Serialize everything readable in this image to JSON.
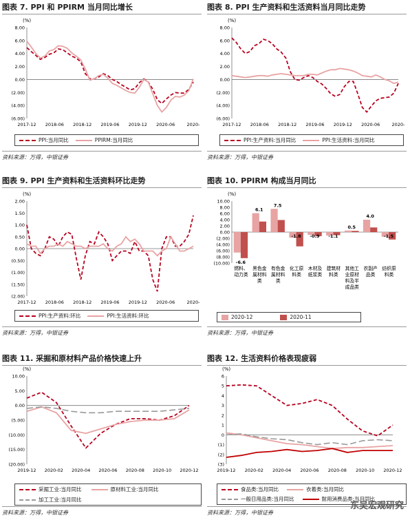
{
  "colors": {
    "dark": "#b8001f",
    "light": "#e8a3a3",
    "gray": "#999999",
    "deep": "#c00000"
  },
  "watermark": "东吴宏观研究",
  "charts": [
    {
      "title": "图表 7. PPI 和 PPIRM 当月同比增长",
      "source": "资料来源：万得，中银证券",
      "unit": "(%)",
      "legend": [
        "PPI:当月同比",
        "PPIRM:当月同比"
      ]
    },
    {
      "title": "图表 8. PPI 生产资料和生活资料当月同比走势",
      "source": "资料来源：万得，中银证券",
      "unit": "(%)",
      "legend": [
        "PPI:生产资料:当月同比",
        "PPI:生活资料:当月同比"
      ]
    },
    {
      "title": "图表 9. PPI 生产资料和生活资料环比走势",
      "source": "资料来源：万得，中银证券",
      "unit": "(%)",
      "legend": [
        "PPI:生产资料:环比",
        "PPI:生活资料:环比"
      ]
    },
    {
      "title": "图表 10. PPIRM 构成当月同比",
      "source": "资料来源：万得，中银证券",
      "unit": "(%)",
      "legend": [
        "2020-12",
        "2020-11"
      ]
    },
    {
      "title": "图表 11. 采掘和原材料产品价格快速上升",
      "source": "资料来源：万得，中银证券",
      "unit": "(%)",
      "legend": [
        "采掘工业:当月同比",
        "原材料工业:当月同比",
        "加工工业:当月同比"
      ]
    },
    {
      "title": "图表 12. 生活资料价格表现疲弱",
      "source": "资料来源：万得，中银证券",
      "unit": "(%)",
      "legend": [
        "食品类:当月同比",
        "衣着类:当月同比",
        "一般日用品类:当月同比",
        "耐用消费品类:当月同比"
      ]
    }
  ],
  "chart_data": [
    {
      "type": "line",
      "x_ticks": [
        "2017-12",
        "2018-06",
        "2018-12",
        "2019-06",
        "2019-12",
        "2020-06",
        "2020-"
      ],
      "ylim": [
        -6,
        8
      ],
      "y_ticks": [
        "8.00",
        "6.00",
        "4.00",
        "2.00",
        "0.00",
        "(2.00)",
        "(4.00)",
        "(6.00)"
      ],
      "series": [
        {
          "name": "PPI:当月同比",
          "style": "dashed-dark",
          "values": [
            4.9,
            4.3,
            3.7,
            3.1,
            3.4,
            3.9,
            4.1,
            4.7,
            4.6,
            4.1,
            3.6,
            3.3,
            2.7,
            0.9,
            0.1,
            0.1,
            0.4,
            0.9,
            0.6,
            0.0,
            -0.3,
            -0.8,
            -1.2,
            -1.6,
            -1.4,
            -0.5,
            0.1,
            -0.4,
            -1.5,
            -3.1,
            -3.7,
            -3.0,
            -2.4,
            -2.0,
            -2.1,
            -2.1,
            -1.5,
            -0.4
          ]
        },
        {
          "name": "PPIRM:当月同比",
          "style": "solid-light",
          "values": [
            5.9,
            5.0,
            4.0,
            3.3,
            3.6,
            4.4,
            4.6,
            5.2,
            5.1,
            4.8,
            4.1,
            3.6,
            3.0,
            1.6,
            -0.1,
            0.1,
            0.6,
            0.8,
            0.2,
            -0.6,
            -0.9,
            -1.3,
            -1.7,
            -2.0,
            -2.1,
            -1.2,
            0.0,
            -0.4,
            -2.2,
            -4.0,
            -5.0,
            -4.3,
            -3.2,
            -2.6,
            -2.7,
            -2.4,
            -1.7,
            0.1
          ]
        }
      ]
    },
    {
      "type": "line",
      "x_ticks": [
        "2017-12",
        "2018-06",
        "2018-12",
        "2019-06",
        "2019-12",
        "2020-06",
        "2020-"
      ],
      "ylim": [
        -6,
        8
      ],
      "y_ticks": [
        "8.00",
        "6.00",
        "4.00",
        "2.00",
        "0.00",
        "(2.00)",
        "(4.00)",
        "(6.00)"
      ],
      "series": [
        {
          "name": "PPI:生产资料:当月同比",
          "style": "dashed-dark",
          "values": [
            6.4,
            5.7,
            4.7,
            4.0,
            4.3,
            5.2,
            5.5,
            6.2,
            6.0,
            5.5,
            4.7,
            4.2,
            3.3,
            1.2,
            0.0,
            -0.1,
            0.3,
            0.6,
            0.3,
            -0.3,
            -0.7,
            -1.4,
            -2.2,
            -2.6,
            -2.3,
            -1.1,
            -0.3,
            -0.3,
            -2.2,
            -4.3,
            -5.0,
            -4.1,
            -3.3,
            -2.9,
            -2.8,
            -2.7,
            -2.1,
            -0.6
          ]
        },
        {
          "name": "PPI:生活资料:当月同比",
          "style": "solid-light",
          "values": [
            0.6,
            0.5,
            0.4,
            0.3,
            0.4,
            0.5,
            0.6,
            0.6,
            0.5,
            0.7,
            0.8,
            0.9,
            0.8,
            0.7,
            0.6,
            0.6,
            0.6,
            0.8,
            0.8,
            0.7,
            1.0,
            1.3,
            1.5,
            1.5,
            1.7,
            1.6,
            1.5,
            1.3,
            1.0,
            0.6,
            0.5,
            0.4,
            0.7,
            0.4,
            0.0,
            -0.2,
            -0.6,
            -0.4
          ]
        }
      ]
    },
    {
      "type": "line",
      "x_ticks": [
        "2017-12",
        "2018-06",
        "2018-12",
        "2019-06",
        "2019-12",
        "2020-06",
        "2020-"
      ],
      "ylim": [
        -2,
        2
      ],
      "y_ticks": [
        "2.00",
        "1.50",
        "1.00",
        "0.50",
        "0.00",
        "(0.50)",
        "(1.00)",
        "(1.50)",
        "(2.00)"
      ],
      "series": [
        {
          "name": "PPI:生产资料:环比",
          "style": "dashed-dark",
          "values": [
            1.0,
            0.0,
            -0.2,
            -0.3,
            0.0,
            0.5,
            0.4,
            0.1,
            0.5,
            0.7,
            0.6,
            -0.4,
            -1.3,
            -0.3,
            0.3,
            0.2,
            0.7,
            0.5,
            0.2,
            -0.5,
            -0.3,
            -0.1,
            -0.1,
            -0.2,
            0.3,
            -0.1,
            -0.1,
            -0.3,
            -1.3,
            -1.8,
            0.0,
            0.5,
            0.5,
            0.1,
            0.1,
            0.3,
            0.6,
            1.4
          ]
        },
        {
          "name": "PPI:生活资料:环比",
          "style": "solid-light",
          "values": [
            0.2,
            0.1,
            0.1,
            -0.2,
            0.0,
            0.1,
            0.1,
            0.2,
            0.1,
            0.3,
            0.2,
            0.1,
            0.1,
            0.0,
            0.1,
            0.1,
            0.1,
            0.2,
            0.0,
            -0.1,
            0.1,
            0.2,
            0.5,
            0.3,
            0.4,
            0.2,
            -0.1,
            -0.1,
            -0.1,
            -0.3,
            -0.1,
            0.0,
            0.5,
            0.2,
            -0.1,
            -0.1,
            0.0,
            0.1
          ]
        }
      ]
    },
    {
      "type": "bar",
      "ylim": [
        -10,
        10
      ],
      "y_ticks": [
        "10.00",
        "8.00",
        "6.00",
        "4.00",
        "2.00",
        "0.00",
        "(2.00)",
        "(4.00)",
        "(6.00)",
        "(8.00)",
        "(10.00)"
      ],
      "categories": [
        [
          "燃料、",
          "动力类"
        ],
        [
          "黑色金",
          "属材料",
          "类"
        ],
        [
          "有色金",
          "属材料",
          "类"
        ],
        [
          "化工原",
          "料类"
        ],
        [
          "木材及",
          "纸浆类"
        ],
        [
          "建筑材",
          "料类"
        ],
        [
          "其他工",
          "业原材",
          "料及半",
          "成品类"
        ],
        [
          "农副产",
          "品类"
        ],
        [
          "纺织原",
          "料类"
        ]
      ],
      "series": [
        {
          "name": "2020-12",
          "values": [
            -6.6,
            6.1,
            7.5,
            -1.8,
            -0.9,
            -1.1,
            0.5,
            4.0,
            -1.5
          ]
        },
        {
          "name": "2020-11",
          "values": [
            -8.4,
            3.4,
            3.9,
            -4.6,
            -1.3,
            -1.0,
            0.4,
            1.5,
            -2.4
          ]
        }
      ],
      "data_labels": [
        "-6.6",
        "6.1",
        "7.5",
        "-1.8",
        "-0.9",
        "-1.1",
        "0.5",
        "4.0",
        "-1.5"
      ]
    },
    {
      "type": "line",
      "x_ticks": [
        "2019-12",
        "2020-02",
        "2020-04",
        "2020-06",
        "2020-08",
        "2020-10",
        "2020-12"
      ],
      "ylim": [
        -20,
        10
      ],
      "y_ticks": [
        "10.00",
        "5.00",
        "0.00",
        "(5.00)",
        "(10.00)",
        "(15.00)",
        "(20.00)"
      ],
      "series": [
        {
          "name": "采掘工业:当月同比",
          "style": "dashed-dark",
          "values": [
            2.5,
            4.5,
            1.0,
            -7.0,
            -14.5,
            -9.5,
            -6.5,
            -4.5,
            -4.5,
            -5.0,
            -3.5,
            0.0
          ]
        },
        {
          "name": "原材料工业:当月同比",
          "style": "solid-light",
          "values": [
            -2.0,
            -0.5,
            -2.5,
            -8.5,
            -9.5,
            -8.0,
            -6.5,
            -5.5,
            -5.0,
            -5.0,
            -4.5,
            -1.5
          ]
        },
        {
          "name": "加工工业:当月同比",
          "style": "longdash-gray",
          "values": [
            -1.0,
            -0.5,
            -1.0,
            -2.0,
            -2.5,
            -2.5,
            -2.0,
            -2.0,
            -2.0,
            -2.0,
            -1.5,
            -1.0
          ]
        }
      ]
    },
    {
      "type": "line",
      "x_ticks": [
        "2019-12",
        "2020-02",
        "2020-04",
        "2020-06",
        "2020-08",
        "2020-10",
        "2020-12"
      ],
      "ylim": [
        -3,
        6
      ],
      "y_ticks": [
        "6",
        "5",
        "4",
        "3",
        "2",
        "1",
        "0",
        "(1)",
        "(2)",
        "(3)"
      ],
      "series": [
        {
          "name": "食品类:当月同比",
          "style": "dashed-dark",
          "values": [
            5.0,
            5.1,
            5.0,
            4.0,
            3.0,
            3.2,
            3.6,
            3.0,
            1.6,
            0.4,
            -0.1,
            1.0
          ]
        },
        {
          "name": "衣着类:当月同比",
          "style": "solid-light",
          "values": [
            0.2,
            0.0,
            -0.3,
            -0.6,
            -0.9,
            -1.0,
            -1.2,
            -1.4,
            -1.3,
            -1.3,
            -1.2,
            -1.1
          ]
        },
        {
          "name": "一般日用品类:当月同比",
          "style": "longdash-gray",
          "values": [
            0.0,
            0.1,
            -0.2,
            -0.4,
            -0.5,
            -0.8,
            -1.0,
            -0.8,
            -1.0,
            -0.6,
            -0.5,
            -0.6
          ]
        },
        {
          "name": "耐用消费品类:当月同比",
          "style": "solid-deep",
          "values": [
            -2.3,
            -2.1,
            -1.8,
            -1.7,
            -1.5,
            -1.7,
            -1.6,
            -1.4,
            -1.8,
            -1.6,
            -1.6,
            -1.6
          ]
        }
      ]
    }
  ]
}
